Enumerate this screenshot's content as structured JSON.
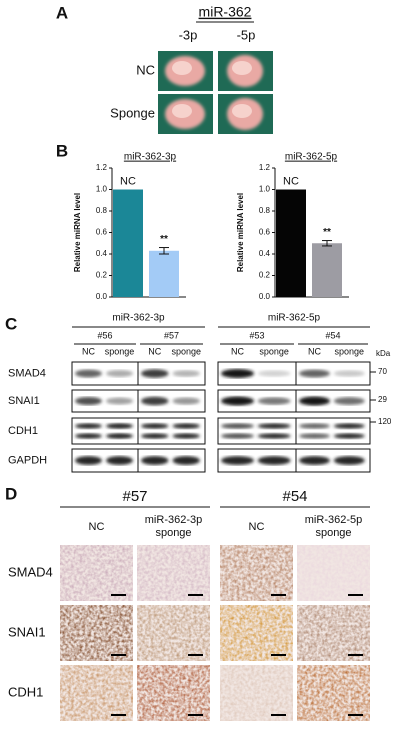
{
  "panels": {
    "A": {
      "label": "A",
      "title": "miR-362",
      "columns": [
        "-3p",
        "-5p"
      ],
      "rows": [
        "NC",
        "Sponge"
      ]
    },
    "B": {
      "label": "B"
    },
    "C": {
      "label": "C",
      "groups": [
        {
          "name": "miR-362-3p",
          "samples": [
            "#56",
            "#57"
          ]
        },
        {
          "name": "miR-362-5p",
          "samples": [
            "#53",
            "#54"
          ]
        }
      ],
      "lanes": [
        "NC",
        "sponge"
      ],
      "rows": [
        "SMAD4",
        "SNAI1",
        "CDH1",
        "GAPDH"
      ],
      "unit": "kDa",
      "markers": [
        70,
        29,
        120
      ]
    },
    "D": {
      "label": "D",
      "samples": [
        "#57",
        "#54"
      ],
      "columns": [
        [
          "NC"
        ],
        [
          "miR-362-3p",
          "sponge"
        ],
        [
          "NC"
        ],
        [
          "miR-362-5p",
          "sponge"
        ]
      ],
      "rows": [
        "SMAD4",
        "SNAI1",
        "CDH1"
      ]
    }
  },
  "chart_data": [
    {
      "type": "bar",
      "title": "miR-362-3p",
      "y_label": "Relative miRNA level",
      "categories": [
        null,
        null
      ],
      "values": [
        1.0,
        0.43
      ],
      "errors": [
        null,
        0.03
      ],
      "colors": [
        "#1b8797",
        "#a3cbf6"
      ],
      "annotations": [
        "NC",
        "**"
      ],
      "ylim": [
        0,
        1.2
      ],
      "yticks": [
        {
          "value": 0,
          "label": "0.0"
        },
        0.2,
        0.4,
        0.6,
        0.8,
        {
          "value": 1,
          "label": "1.0"
        },
        1.2
      ]
    },
    {
      "type": "bar",
      "title": "miR-362-5p",
      "y_label": "Relative miRNA level",
      "categories": [
        null,
        null
      ],
      "values": [
        1.0,
        0.5
      ],
      "errors": [
        null,
        0.025
      ],
      "colors": [
        "#050505",
        "#9d9ca3"
      ],
      "annotations": [
        "NC",
        "**"
      ],
      "ylim": [
        0,
        1.2
      ],
      "yticks": [
        {
          "value": 0,
          "label": "0.0"
        },
        0.2,
        0.4,
        0.6,
        0.8,
        {
          "value": 1,
          "label": "1.0"
        },
        1.2
      ]
    }
  ]
}
